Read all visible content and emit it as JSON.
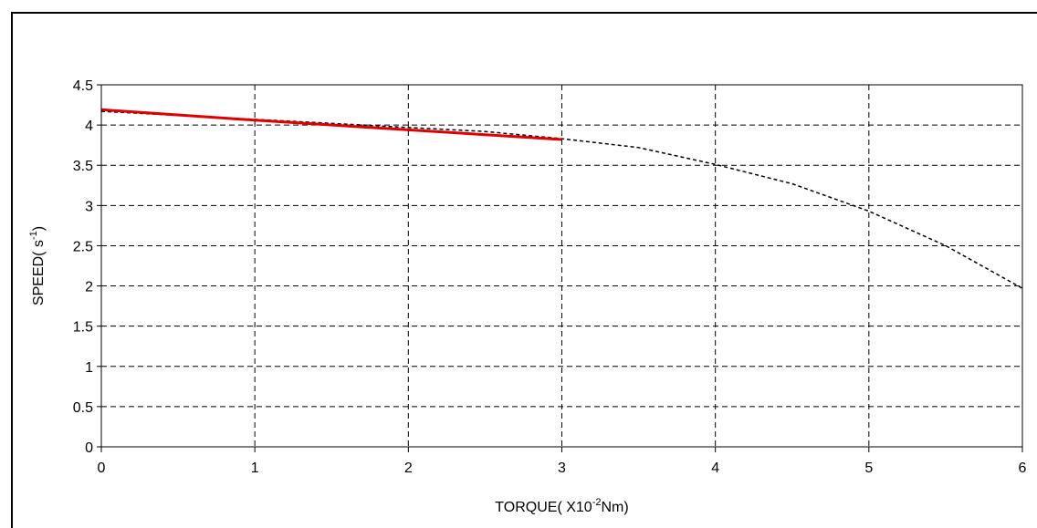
{
  "chart_data": {
    "type": "line",
    "title": "",
    "xlabel": {
      "text": "TORQUE( X10",
      "sup": "-2",
      "suffix": "Nm)"
    },
    "ylabel": {
      "text": "SPEED( s",
      "sup": "-1",
      "suffix": ")"
    },
    "xlim": [
      0,
      6
    ],
    "ylim": [
      0,
      4.5
    ],
    "x_ticks": [
      "0",
      "1",
      "2",
      "3",
      "4",
      "5",
      "6"
    ],
    "y_ticks": [
      "0",
      "0.5",
      "1",
      "1.5",
      "2",
      "2.5",
      "3",
      "3.5",
      "4",
      "4.5"
    ],
    "grid": true,
    "series": [
      {
        "style": "dashed",
        "color": "#000000",
        "x": [
          0,
          0.5,
          1,
          1.5,
          2,
          2.5,
          3,
          3.5,
          4,
          4.5,
          5,
          5.5,
          6
        ],
        "y": [
          4.17,
          4.12,
          4.07,
          4.02,
          3.97,
          3.92,
          3.83,
          3.72,
          3.51,
          3.27,
          2.93,
          2.5,
          1.97
        ]
      },
      {
        "style": "solid",
        "color": "#e00000",
        "x": [
          0,
          1,
          2,
          3
        ],
        "y": [
          4.19,
          4.06,
          3.94,
          3.82
        ]
      }
    ]
  }
}
